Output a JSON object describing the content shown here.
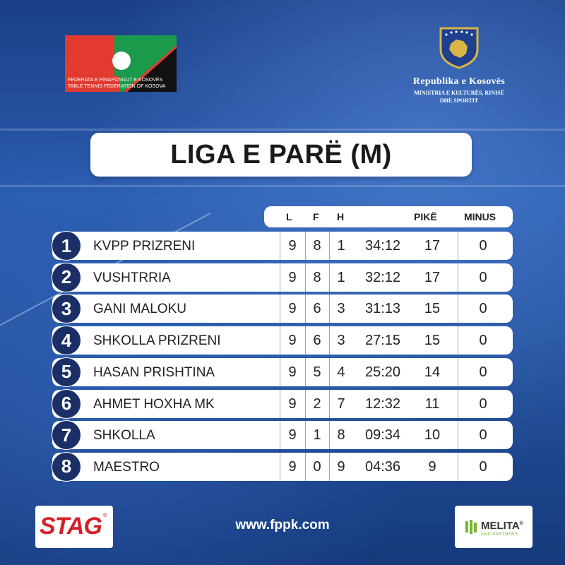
{
  "federation": {
    "line1": "FEDERATA E PINGPONGUT E KOSOVËS",
    "line2": "TABLE TENNIS FEDERATION OF KOSOVA"
  },
  "ministry": {
    "title": "Republika e Kosovës",
    "sub1": "MINISTRIA E KULTURËS, RINISË",
    "sub2": "DHE SPORTIT"
  },
  "title": "LIGA E PARË (M)",
  "columns": {
    "l": "L",
    "f": "F",
    "h": "H",
    "pike": "PIKË",
    "minus": "MINUS"
  },
  "rows": [
    {
      "rank": "1",
      "team": "KVPP PRIZRENI",
      "l": "9",
      "f": "8",
      "h": "1",
      "score": "34:12",
      "pike": "17",
      "minus": "0"
    },
    {
      "rank": "2",
      "team": "VUSHTRRIA",
      "l": "9",
      "f": "8",
      "h": "1",
      "score": "32:12",
      "pike": "17",
      "minus": "0"
    },
    {
      "rank": "3",
      "team": "GANI MALOKU",
      "l": "9",
      "f": "6",
      "h": "3",
      "score": "31:13",
      "pike": "15",
      "minus": "0"
    },
    {
      "rank": "4",
      "team": "SHKOLLA PRIZRENI",
      "l": "9",
      "f": "6",
      "h": "3",
      "score": "27:15",
      "pike": "15",
      "minus": "0"
    },
    {
      "rank": "5",
      "team": "HASAN PRISHTINA",
      "l": "9",
      "f": "5",
      "h": "4",
      "score": "25:20",
      "pike": "14",
      "minus": "0"
    },
    {
      "rank": "6",
      "team": "AHMET HOXHA MK",
      "l": "9",
      "f": "2",
      "h": "7",
      "score": "12:32",
      "pike": "11",
      "minus": "0"
    },
    {
      "rank": "7",
      "team": "SHKOLLA",
      "l": "9",
      "f": "1",
      "h": "8",
      "score": "09:34",
      "pike": "10",
      "minus": "0"
    },
    {
      "rank": "8",
      "team": "MAESTRO",
      "l": "9",
      "f": "0",
      "h": "9",
      "score": "04:36",
      "pike": "9",
      "minus": "0"
    }
  ],
  "footer": {
    "stag": "STAG",
    "stag_mark": "®",
    "url": "www.fppk.com",
    "melita": "MELITA",
    "melita_mark": "®",
    "melita_sub": "AND PARTNERS"
  },
  "colors": {
    "rank_badge": "#1b2f66",
    "stag_red": "#d4202a",
    "melita_green": "#7ab530"
  }
}
